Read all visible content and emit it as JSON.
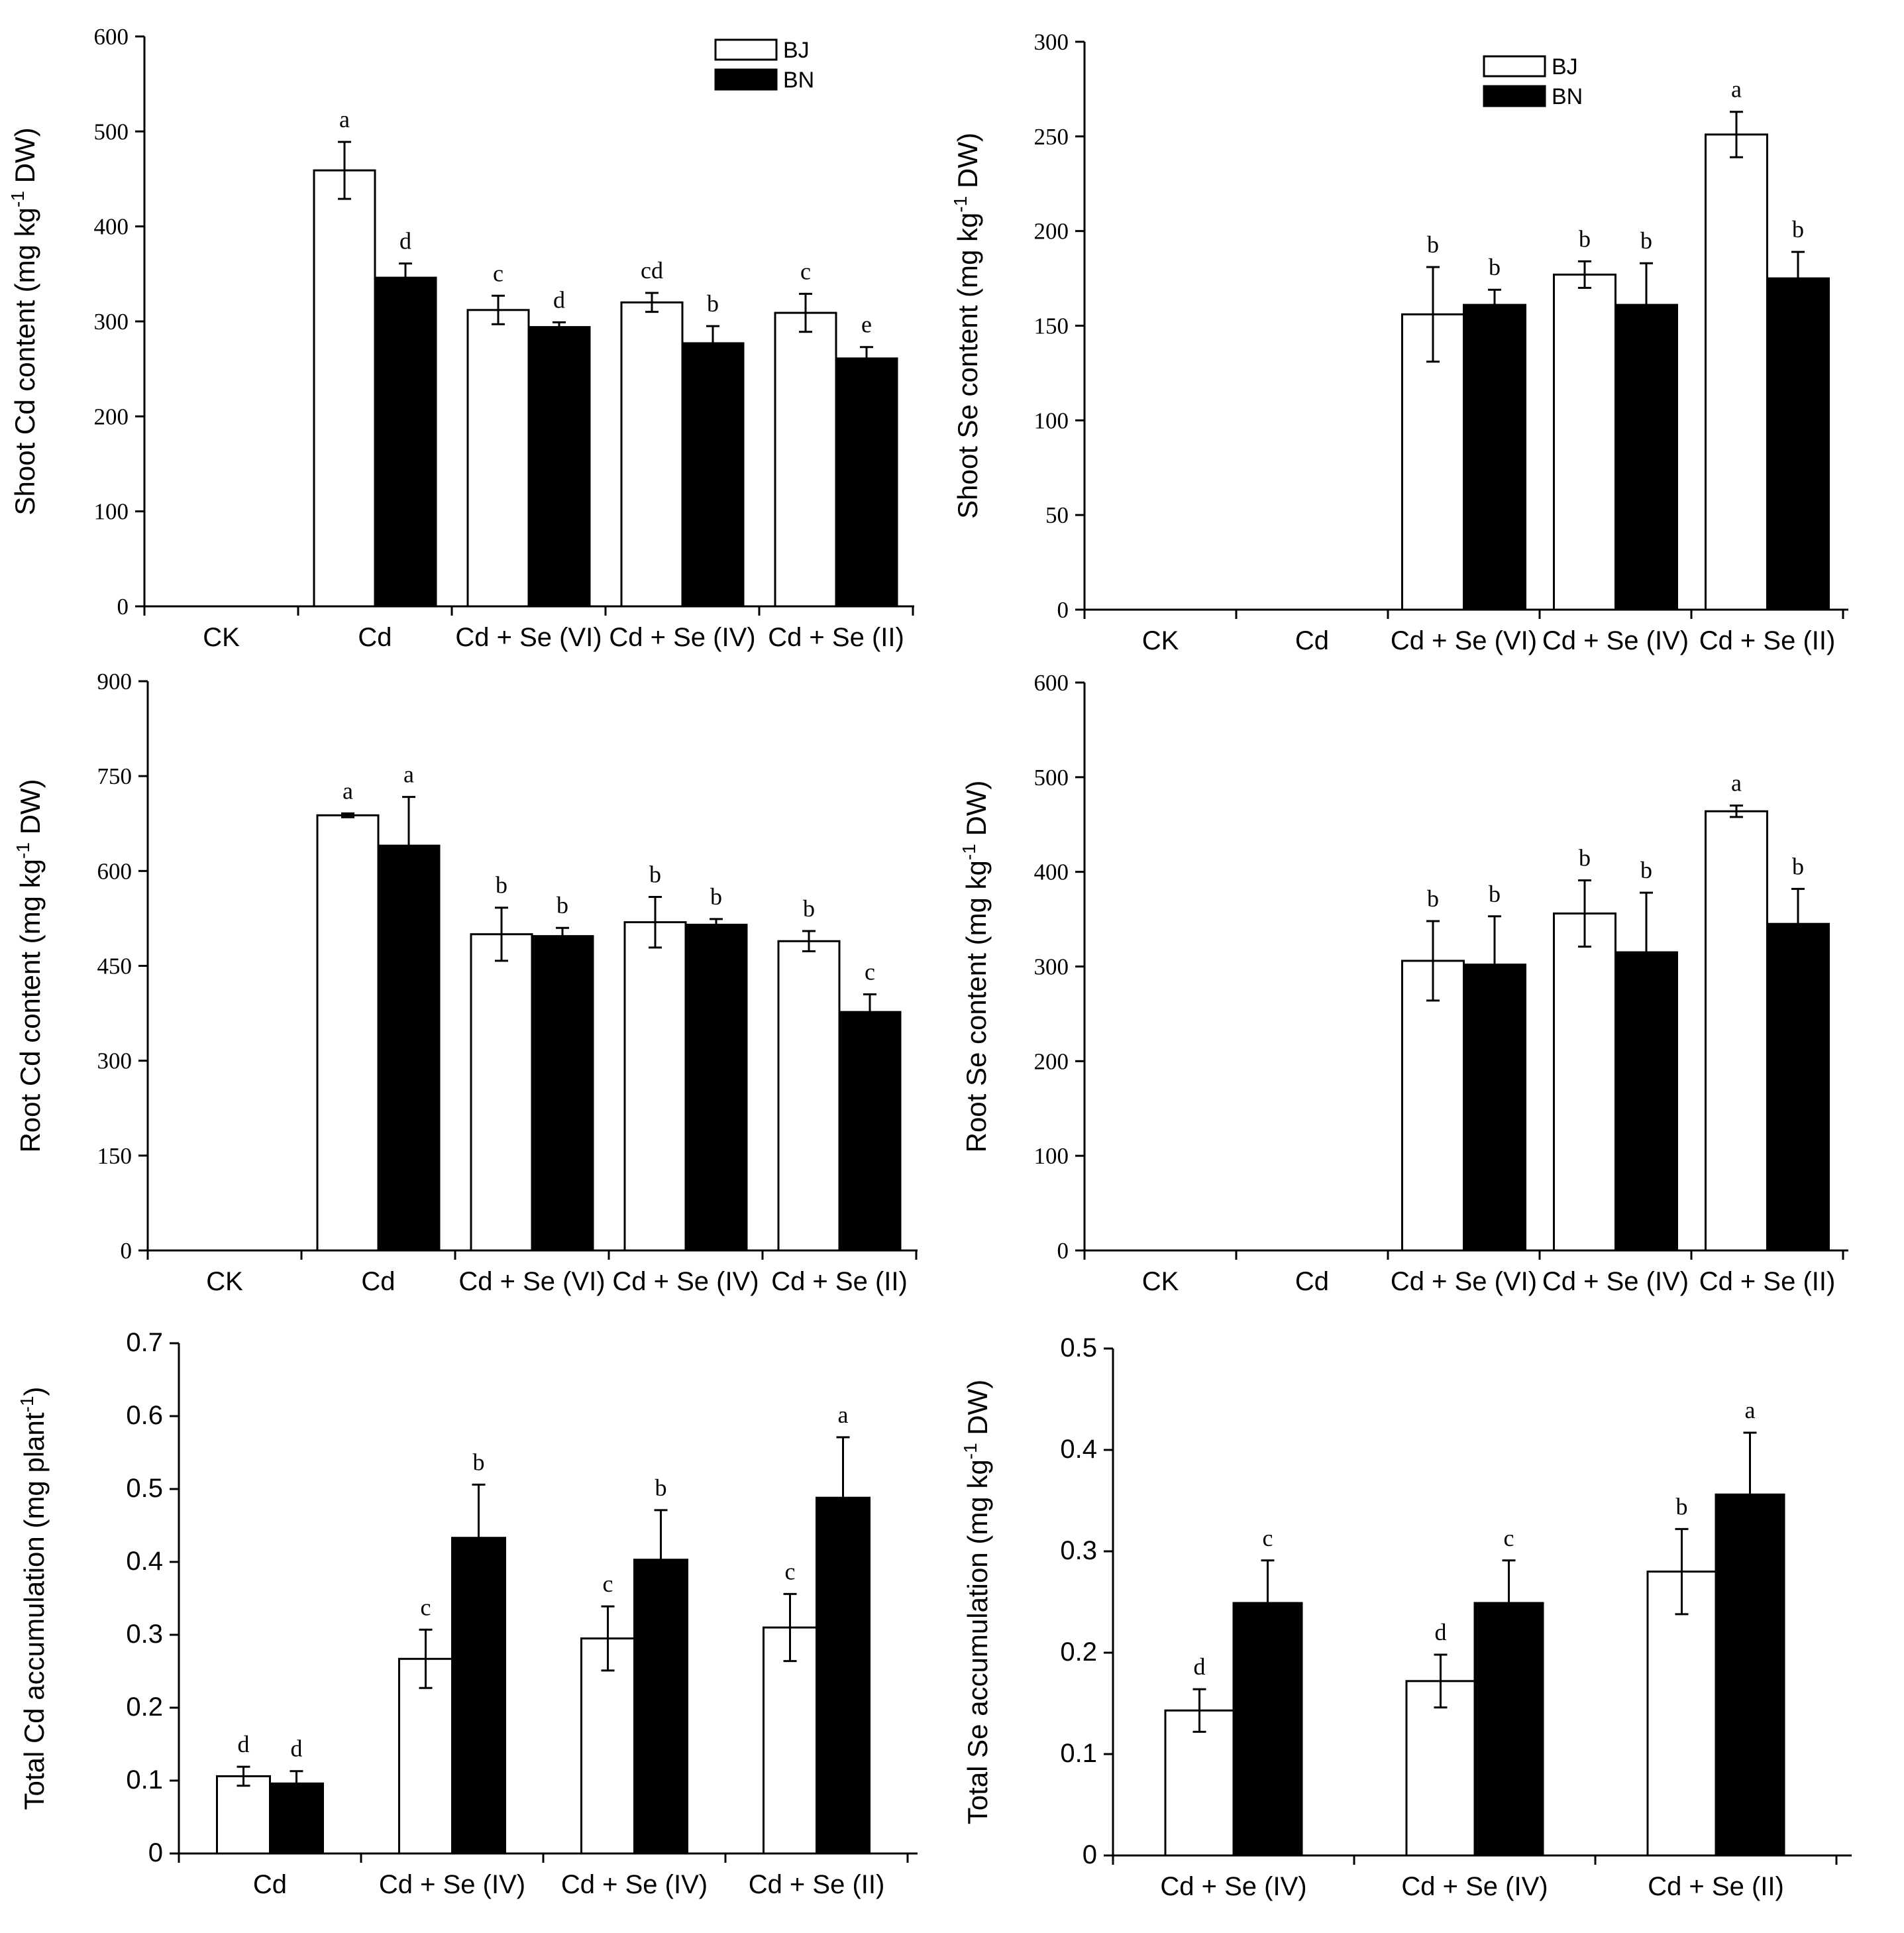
{
  "colors": {
    "bj_fill": "#ffffff",
    "bn_fill": "#000000",
    "axis": "#000000"
  },
  "chart_data": [
    {
      "type": "bar",
      "ylabel": "Shoot Cd content (mg kg-1 DW)",
      "ylabel_parts": [
        "Shoot Cd content (mg kg",
        "-1",
        " DW)"
      ],
      "categories": [
        "CK",
        "Cd",
        "Cd + Se (VI)",
        "Cd + Se (IV)",
        "Cd + Se (II)"
      ],
      "ylim": [
        0,
        600
      ],
      "yticks": [
        "0",
        "100",
        "200",
        "300",
        "400",
        "500",
        "600"
      ],
      "legend": [
        "BJ",
        "BN"
      ],
      "series": [
        {
          "name": "BJ",
          "values": [
            0,
            459,
            312,
            320,
            309
          ],
          "errors": [
            0,
            30,
            15,
            10,
            20
          ],
          "sig": [
            "",
            "a",
            "c",
            "cd",
            "c"
          ]
        },
        {
          "name": "BN",
          "values": [
            0,
            346,
            294,
            277,
            261
          ],
          "errors": [
            0,
            15,
            5,
            18,
            12
          ],
          "sig": [
            "",
            "d",
            "d",
            "b",
            "e"
          ]
        }
      ]
    },
    {
      "type": "bar",
      "ylabel": "Shoot Se content (mg kg-1 DW)",
      "ylabel_parts": [
        "Shoot Se content (mg kg",
        "-1",
        " DW)"
      ],
      "categories": [
        "CK",
        "Cd",
        "Cd + Se (VI)",
        "Cd + Se (IV)",
        "Cd + Se (II)"
      ],
      "ylim": [
        0,
        300
      ],
      "yticks": [
        "0",
        "50",
        "100",
        "150",
        "200",
        "250",
        "300"
      ],
      "legend": [
        "BJ",
        "BN"
      ],
      "series": [
        {
          "name": "BJ",
          "values": [
            0,
            0,
            156,
            177,
            251
          ],
          "errors": [
            0,
            0,
            25,
            7,
            12
          ],
          "sig": [
            "",
            "",
            "b",
            "b",
            "a"
          ]
        },
        {
          "name": "BN",
          "values": [
            0,
            0,
            161,
            161,
            175
          ],
          "errors": [
            0,
            0,
            8,
            22,
            14
          ],
          "sig": [
            "",
            "",
            "b",
            "b",
            "b"
          ]
        }
      ]
    },
    {
      "type": "bar",
      "ylabel": "Root Cd content (mg kg-1 DW)",
      "ylabel_parts": [
        "Root Cd content (mg kg",
        "-1",
        " DW)"
      ],
      "categories": [
        "CK",
        "Cd",
        "Cd + Se (VI)",
        "Cd + Se (IV)",
        "Cd + Se (II)"
      ],
      "ylim": [
        0,
        900
      ],
      "yticks": [
        "0",
        "150",
        "300",
        "450",
        "600",
        "750",
        "900"
      ],
      "legend": [],
      "series": [
        {
          "name": "BJ",
          "values": [
            0,
            688,
            500,
            519,
            489
          ],
          "errors": [
            0,
            3,
            42,
            40,
            16
          ],
          "sig": [
            "",
            "a",
            "b",
            "b",
            "b"
          ]
        },
        {
          "name": "BN",
          "values": [
            0,
            640,
            497,
            515,
            377
          ],
          "errors": [
            0,
            77,
            13,
            9,
            28
          ],
          "sig": [
            "",
            "a",
            "b",
            "b",
            "c"
          ]
        }
      ]
    },
    {
      "type": "bar",
      "ylabel": "Root Se content (mg kg-1 DW)",
      "ylabel_parts": [
        "Root Se content (mg kg",
        "-1",
        " DW)"
      ],
      "categories": [
        "CK",
        "Cd",
        "Cd + Se (VI)",
        "Cd + Se (IV)",
        "Cd + Se (II)"
      ],
      "ylim": [
        0,
        600
      ],
      "yticks": [
        "0",
        "100",
        "200",
        "300",
        "400",
        "500",
        "600"
      ],
      "legend": [],
      "series": [
        {
          "name": "BJ",
          "values": [
            0,
            0,
            306,
            356,
            464
          ],
          "errors": [
            0,
            0,
            42,
            35,
            6
          ],
          "sig": [
            "",
            "",
            "b",
            "b",
            "a"
          ]
        },
        {
          "name": "BN",
          "values": [
            0,
            0,
            302,
            315,
            345
          ],
          "errors": [
            0,
            0,
            51,
            63,
            37
          ],
          "sig": [
            "",
            "",
            "b",
            "b",
            "b"
          ]
        }
      ]
    },
    {
      "type": "bar",
      "ylabel": "Total Cd accumulation (mg plant-1)",
      "ylabel_parts": [
        "Total Cd accumulation (mg plant",
        "-1",
        ")"
      ],
      "categories": [
        "Cd",
        "Cd + Se (IV)",
        "Cd + Se (IV)",
        "Cd + Se (II)"
      ],
      "ylim": [
        0,
        0.7
      ],
      "yticks": [
        "0",
        "0.1",
        "0.2",
        "0.3",
        "0.4",
        "0.5",
        "0.6",
        "0.7"
      ],
      "legend": [],
      "series": [
        {
          "name": "BJ",
          "values": [
            0.106,
            0.267,
            0.295,
            0.31
          ],
          "errors": [
            0.013,
            0.04,
            0.044,
            0.046
          ],
          "sig": [
            "d",
            "c",
            "c",
            "c"
          ]
        },
        {
          "name": "BN",
          "values": [
            0.096,
            0.433,
            0.403,
            0.488
          ],
          "errors": [
            0.017,
            0.073,
            0.068,
            0.083
          ],
          "sig": [
            "d",
            "b",
            "b",
            "a"
          ]
        }
      ]
    },
    {
      "type": "bar",
      "ylabel": "Total Se accumulation (mg kg-1 DW)",
      "ylabel_parts": [
        "Total Se accumulation (mg kg",
        "-1",
        " DW)"
      ],
      "categories": [
        "Cd + Se (IV)",
        "Cd + Se (IV)",
        "Cd + Se (II)"
      ],
      "ylim": [
        0,
        0.5
      ],
      "yticks": [
        "0",
        "0.1",
        "0.2",
        "0.3",
        "0.4",
        "0.5"
      ],
      "legend": [],
      "series": [
        {
          "name": "BJ",
          "values": [
            0.143,
            0.172,
            0.28
          ],
          "errors": [
            0.021,
            0.026,
            0.042
          ],
          "sig": [
            "d",
            "d",
            "b"
          ]
        },
        {
          "name": "BN",
          "values": [
            0.249,
            0.249,
            0.356
          ],
          "errors": [
            0.042,
            0.042,
            0.061
          ],
          "sig": [
            "c",
            "c",
            "a"
          ]
        }
      ]
    }
  ]
}
